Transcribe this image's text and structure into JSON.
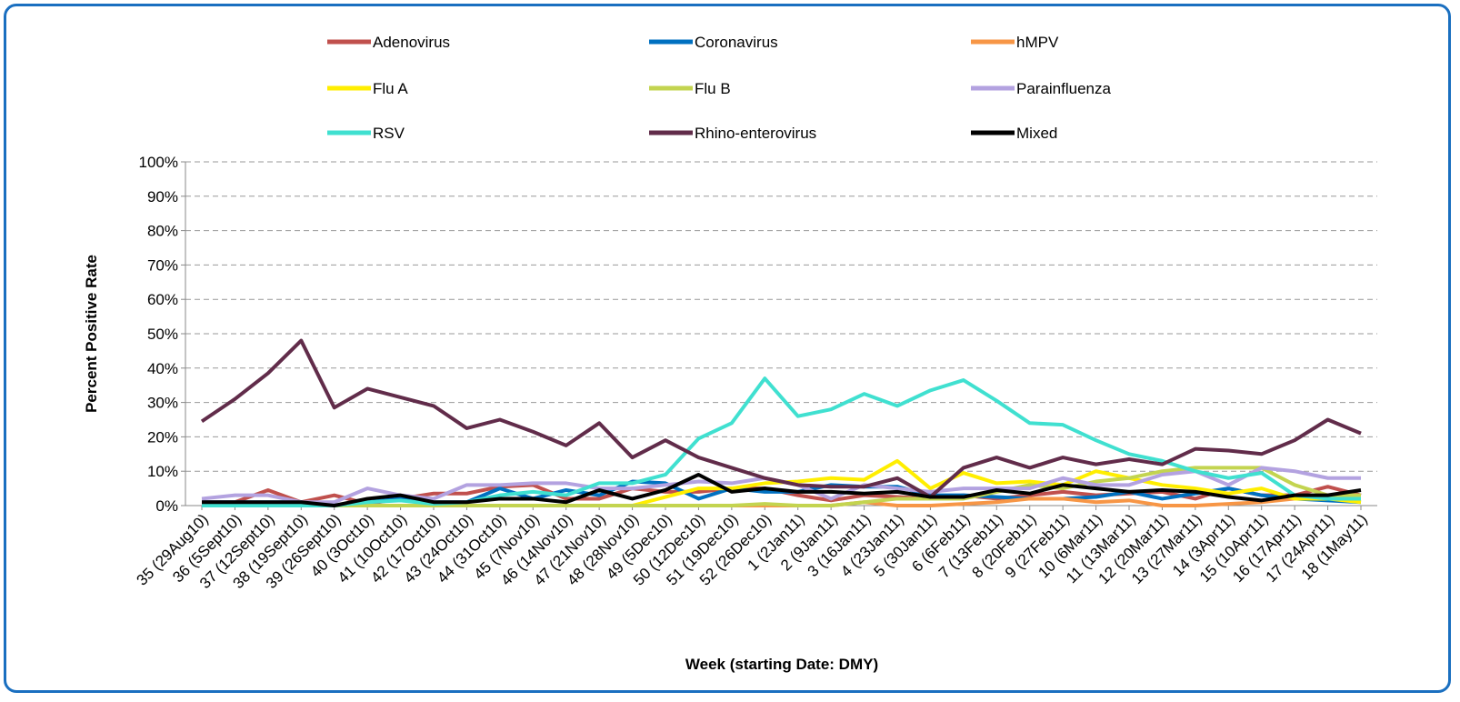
{
  "chart_data": {
    "type": "line",
    "x_label": "Week (starting Date: DMY)",
    "y_label": "Percent Positive Rate",
    "categories": [
      "35 (29Aug10)",
      "36 (5Sept10)",
      "37 (12Sept10)",
      "38 (19Sept10)",
      "39 (26Sept10)",
      "40 (3Oct10)",
      "41 (10Oct10)",
      "42 (17Oct10)",
      "43 (24Oct10)",
      "44 (31Oct10)",
      "45 (7Nov10)",
      "46 (14Nov10)",
      "47 (21Nov10)",
      "48 (28Nov10)",
      "49 (5Dec10)",
      "50 (12Dec10)",
      "51 (19Dec10)",
      "52 (26Dec10)",
      "1 (2Jan11)",
      "2 (9Jan11)",
      "3 (16Jan11)",
      "4 (23Jan11)",
      "5 (30Jan11)",
      "6 (6Feb11)",
      "7 (13Feb11)",
      "8 (20Feb11)",
      "9 (27Feb11)",
      "10 (6Mar11)",
      "11 (13Mar11)",
      "12 (20Mar11)",
      "13 (27Mar11)",
      "14 (3Apr11)",
      "15 (10Apr11)",
      "16 (17Apr11)",
      "17 (24Apr11)",
      "18 (1May11)"
    ],
    "ylim": [
      0,
      100
    ],
    "yticks": [
      {
        "value": 0,
        "label": "0%"
      },
      {
        "value": 10,
        "label": "10%"
      },
      {
        "value": 20,
        "label": "20%"
      },
      {
        "value": 30,
        "label": "30%"
      },
      {
        "value": 40,
        "label": "40%"
      },
      {
        "value": 50,
        "label": "50%"
      },
      {
        "value": 60,
        "label": "60%"
      },
      {
        "value": 70,
        "label": "70%"
      },
      {
        "value": 80,
        "label": "80%"
      },
      {
        "value": 90,
        "label": "90%"
      },
      {
        "value": 100,
        "label": "100%"
      }
    ],
    "grid": true,
    "legend": "top",
    "series": [
      {
        "name": "Adenovirus",
        "color": "#c0504d",
        "values": [
          1,
          1,
          4.5,
          1,
          3,
          0.5,
          2,
          3.5,
          3.5,
          5.5,
          6,
          2,
          2,
          5,
          4,
          4,
          5,
          5,
          3,
          1.5,
          3,
          2.5,
          2,
          3,
          2,
          3,
          4,
          3,
          3.5,
          4,
          2,
          5,
          3,
          3,
          5.5,
          3
        ]
      },
      {
        "name": "Coronavirus",
        "color": "#0070c0",
        "values": [
          1,
          1,
          1,
          1,
          0,
          1,
          2,
          1,
          1,
          5,
          2,
          4.5,
          3,
          7,
          6.5,
          2,
          5,
          4,
          4,
          6,
          5.5,
          5.5,
          3,
          3,
          2.5,
          2,
          2,
          2.5,
          4,
          2,
          3.5,
          5,
          3,
          2,
          1.5,
          1
        ]
      },
      {
        "name": "hMPV",
        "color": "#f79646",
        "values": [
          0,
          0,
          0,
          0,
          0,
          0,
          0,
          0,
          0,
          0,
          0,
          0,
          0,
          0,
          0,
          0,
          0,
          0,
          0,
          0,
          1,
          0,
          0,
          0.5,
          1,
          2,
          2,
          1,
          1.5,
          0,
          0,
          0.5,
          1,
          2,
          2,
          2
        ]
      },
      {
        "name": "Flu A",
        "color": "#ffee00",
        "values": [
          0,
          0,
          0,
          0,
          0,
          0,
          0,
          0,
          0,
          0,
          0,
          0,
          0,
          0,
          2.5,
          5,
          5,
          6.5,
          7,
          8,
          7.5,
          13,
          5,
          9.5,
          6.5,
          7,
          6,
          10,
          8,
          6,
          5,
          3.5,
          5,
          2,
          2,
          1
        ]
      },
      {
        "name": "Flu B",
        "color": "#c3d450",
        "values": [
          0,
          0,
          0,
          0,
          0,
          0,
          0,
          0,
          0,
          0,
          0,
          0,
          0,
          0,
          0,
          0,
          0,
          0.5,
          0,
          0,
          1,
          2,
          2,
          2,
          4,
          6,
          5,
          7,
          8,
          10,
          11,
          11,
          11,
          6,
          3,
          3
        ]
      },
      {
        "name": "Parainfluenza",
        "color": "#b3a2e0",
        "values": [
          2,
          3,
          3,
          1,
          1,
          5,
          3,
          2,
          6,
          6,
          6.5,
          6.5,
          5,
          5,
          6,
          7,
          6.5,
          8,
          6,
          2,
          6,
          5,
          4,
          5,
          5,
          5,
          8,
          6,
          6,
          9,
          10,
          6,
          11,
          10,
          8,
          8
        ]
      },
      {
        "name": "RSV",
        "color": "#40e0d0",
        "values": [
          0,
          0,
          0,
          0,
          0,
          1,
          1.5,
          0.5,
          1,
          3,
          4,
          3,
          6.5,
          6.5,
          9,
          19.5,
          24,
          37,
          26,
          28,
          32.5,
          29,
          33.5,
          36.5,
          30.5,
          24,
          23.5,
          19,
          15,
          13,
          10,
          8,
          9.5,
          3,
          2,
          2
        ]
      },
      {
        "name": "Rhino-enterovirus",
        "color": "#612c4a",
        "values": [
          24.5,
          31,
          38.5,
          48,
          28.5,
          34,
          31.5,
          29,
          22.5,
          25,
          21.5,
          17.5,
          24,
          14,
          19,
          14,
          11,
          8,
          6,
          5.5,
          5.5,
          8,
          2.5,
          11,
          14,
          11,
          14,
          12,
          13.5,
          12,
          16.5,
          16,
          15,
          19,
          25,
          21
        ]
      },
      {
        "name": "Mixed",
        "color": "#000000",
        "values": [
          1,
          1,
          1,
          1,
          0,
          2,
          3,
          1,
          1,
          2,
          2,
          1,
          4.5,
          2,
          4.5,
          9,
          4,
          5,
          4,
          4,
          3.5,
          4,
          2.5,
          2.5,
          4.5,
          3.5,
          6,
          5,
          4,
          4.5,
          4,
          2.5,
          1.5,
          3,
          3,
          4.5
        ]
      }
    ]
  }
}
